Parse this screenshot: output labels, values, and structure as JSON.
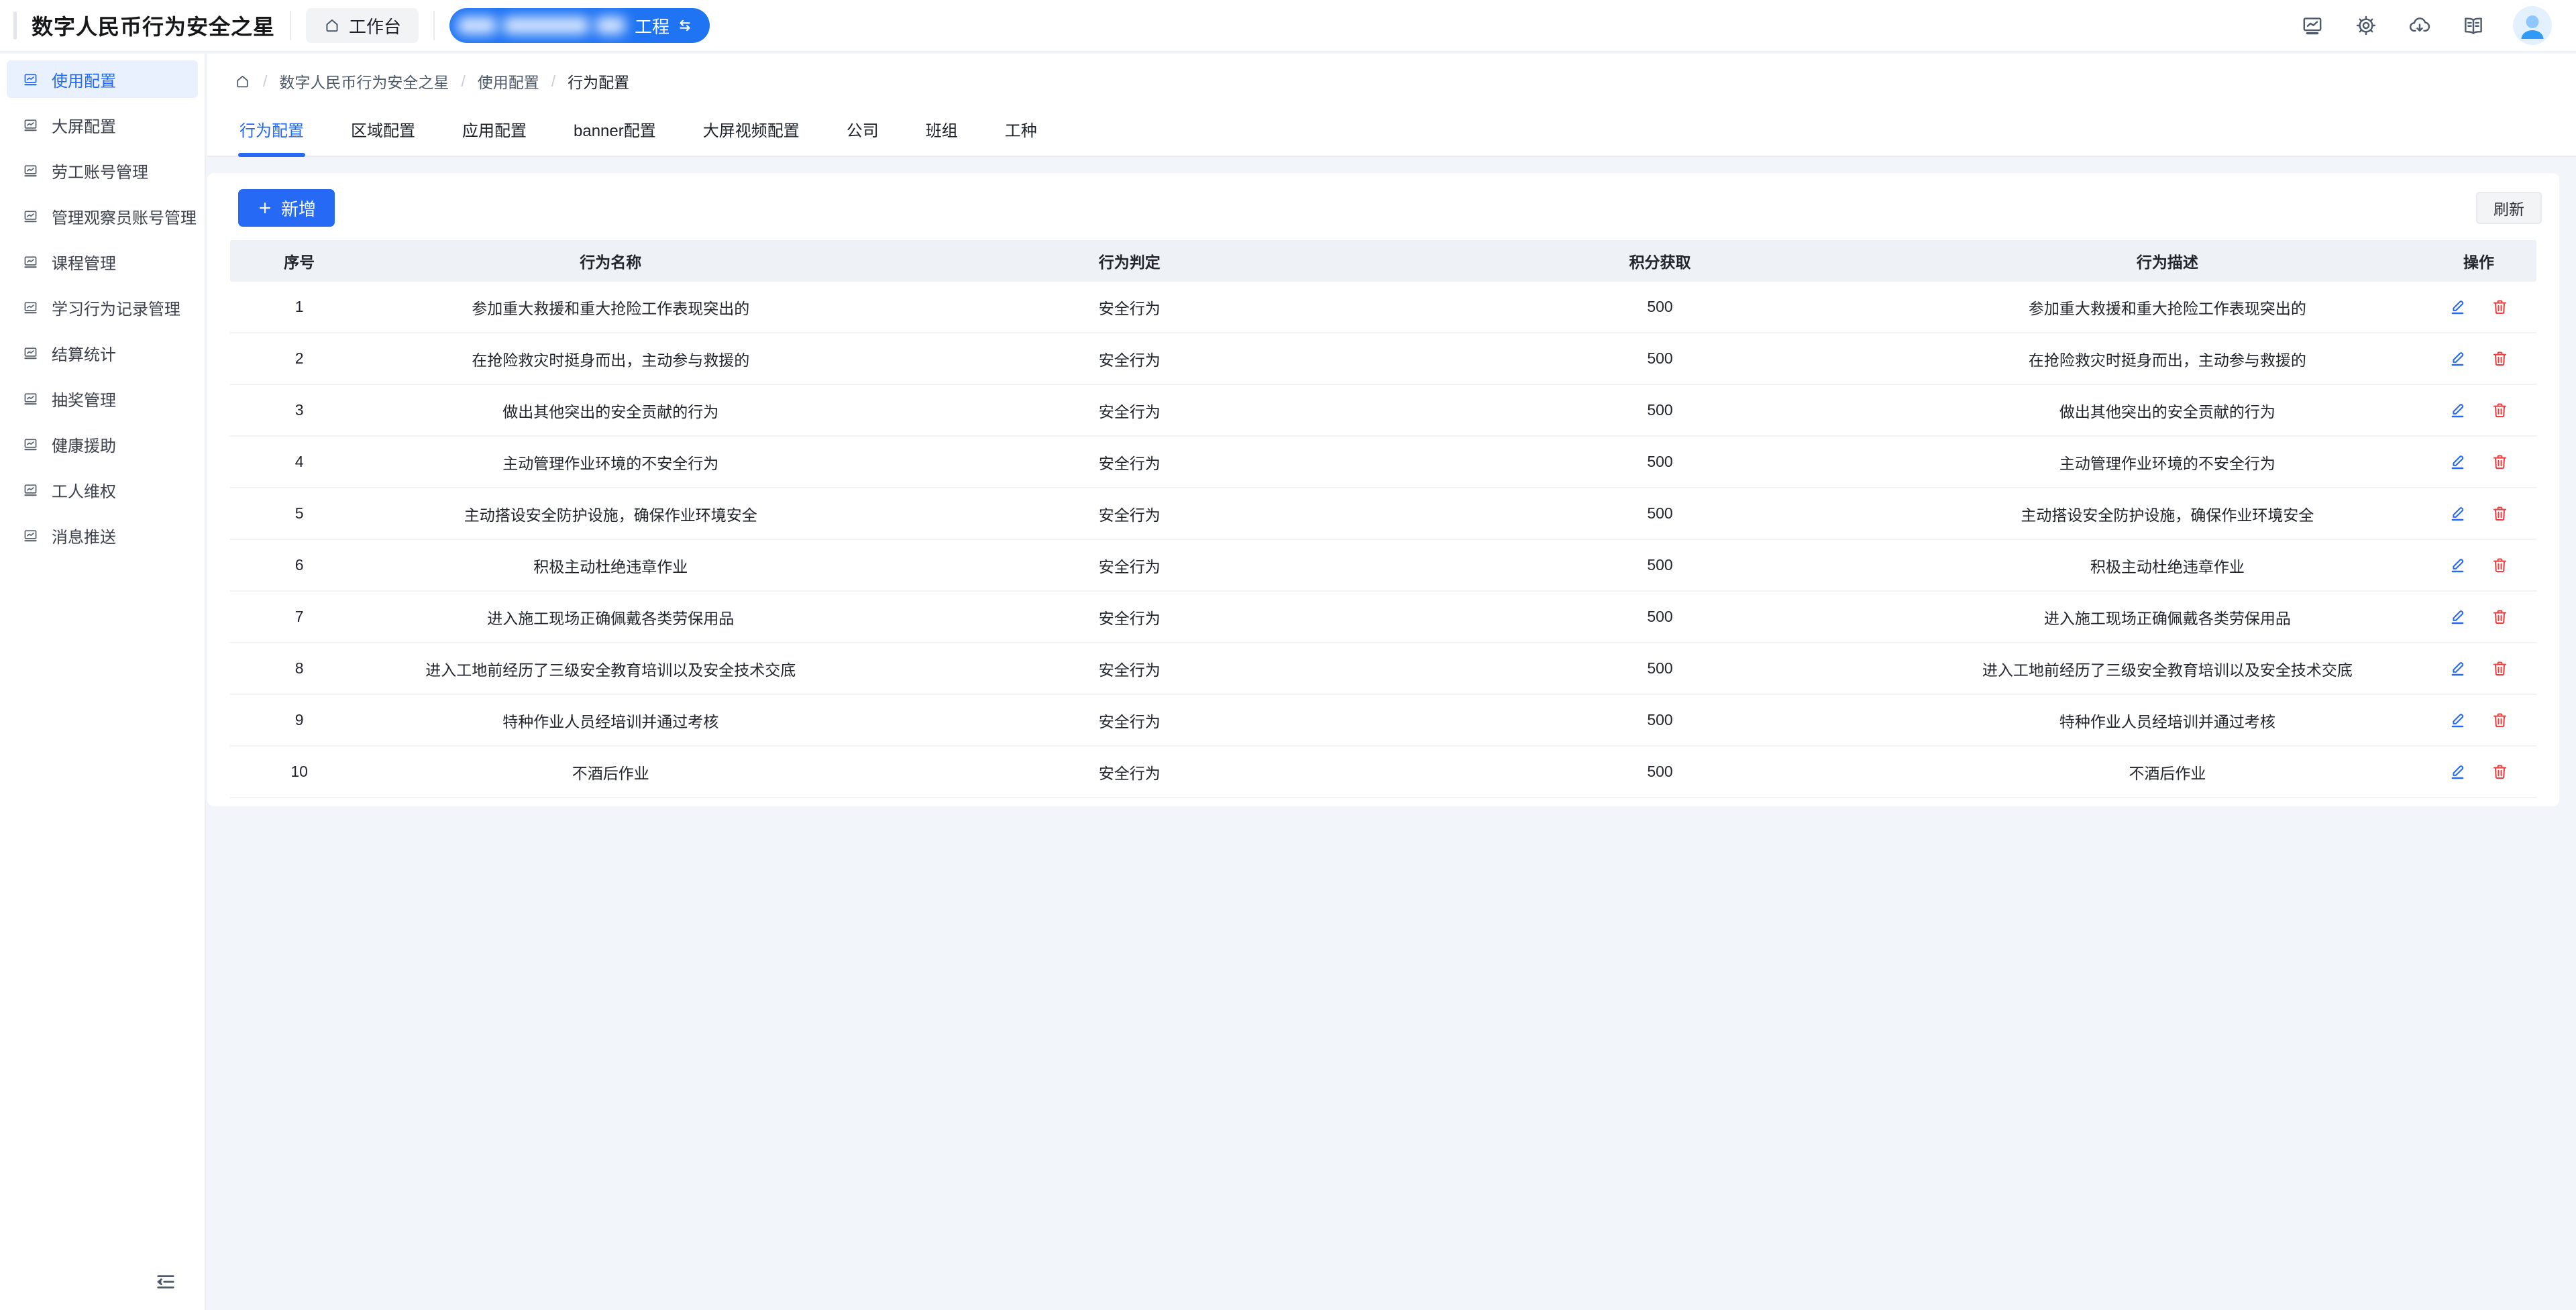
{
  "app": {
    "title": "数字人民币行为安全之星"
  },
  "header": {
    "workbench_label": "工作台",
    "project_switcher": {
      "redacted": true,
      "visible_suffix": "工程",
      "icon": "swap-arrows-icon"
    },
    "action_icons": [
      "monitor-chart-icon",
      "gear-icon",
      "cloud-download-icon",
      "book-icon"
    ],
    "avatar_icon": "user-avatar"
  },
  "sidebar": {
    "collapse_icon": "menu-fold-icon",
    "items": [
      {
        "label": "使用配置",
        "active": true
      },
      {
        "label": "大屏配置",
        "active": false
      },
      {
        "label": "劳工账号管理",
        "active": false
      },
      {
        "label": "管理观察员账号管理",
        "active": false
      },
      {
        "label": "课程管理",
        "active": false
      },
      {
        "label": "学习行为记录管理",
        "active": false
      },
      {
        "label": "结算统计",
        "active": false
      },
      {
        "label": "抽奖管理",
        "active": false
      },
      {
        "label": "健康援助",
        "active": false
      },
      {
        "label": "工人维权",
        "active": false
      },
      {
        "label": "消息推送",
        "active": false
      }
    ]
  },
  "breadcrumb": {
    "home_icon": "home-icon",
    "separator": "/",
    "items": [
      "数字人民币行为安全之星",
      "使用配置",
      "行为配置"
    ]
  },
  "tabs": {
    "items": [
      {
        "label": "行为配置",
        "active": true
      },
      {
        "label": "区域配置",
        "active": false
      },
      {
        "label": "应用配置",
        "active": false
      },
      {
        "label": "banner配置",
        "active": false
      },
      {
        "label": "大屏视频配置",
        "active": false
      },
      {
        "label": "公司",
        "active": false
      },
      {
        "label": "班组",
        "active": false
      },
      {
        "label": "工种",
        "active": false
      }
    ]
  },
  "toolbar": {
    "add_label": "新增",
    "add_icon": "plus-icon",
    "refresh_label": "刷新"
  },
  "table": {
    "columns": [
      "序号",
      "行为名称",
      "行为判定",
      "积分获取",
      "行为描述",
      "操作"
    ],
    "action_icons": [
      "edit-icon",
      "delete-icon"
    ],
    "rows": [
      {
        "index": 1,
        "name": "参加重大救援和重大抢险工作表现突出的",
        "judgment": "安全行为",
        "points": 500,
        "description": "参加重大救援和重大抢险工作表现突出的"
      },
      {
        "index": 2,
        "name": "在抢险救灾时挺身而出，主动参与救援的",
        "judgment": "安全行为",
        "points": 500,
        "description": "在抢险救灾时挺身而出，主动参与救援的"
      },
      {
        "index": 3,
        "name": "做出其他突出的安全贡献的行为",
        "judgment": "安全行为",
        "points": 500,
        "description": "做出其他突出的安全贡献的行为"
      },
      {
        "index": 4,
        "name": "主动管理作业环境的不安全行为",
        "judgment": "安全行为",
        "points": 500,
        "description": "主动管理作业环境的不安全行为"
      },
      {
        "index": 5,
        "name": "主动搭设安全防护设施，确保作业环境安全",
        "judgment": "安全行为",
        "points": 500,
        "description": "主动搭设安全防护设施，确保作业环境安全"
      },
      {
        "index": 6,
        "name": "积极主动杜绝违章作业",
        "judgment": "安全行为",
        "points": 500,
        "description": "积极主动杜绝违章作业"
      },
      {
        "index": 7,
        "name": "进入施工现场正确佩戴各类劳保用品",
        "judgment": "安全行为",
        "points": 500,
        "description": "进入施工现场正确佩戴各类劳保用品"
      },
      {
        "index": 8,
        "name": "进入工地前经历了三级安全教育培训以及安全技术交底",
        "judgment": "安全行为",
        "points": 500,
        "description": "进入工地前经历了三级安全教育培训以及安全技术交底"
      },
      {
        "index": 9,
        "name": "特种作业人员经培训并通过考核",
        "judgment": "安全行为",
        "points": 500,
        "description": "特种作业人员经培训并通过考核"
      },
      {
        "index": 10,
        "name": "不酒后作业",
        "judgment": "安全行为",
        "points": 500,
        "description": "不酒后作业"
      }
    ]
  },
  "colors": {
    "primary": "#2569f5",
    "danger": "#f03e3e",
    "content_bg": "#f2f5f9",
    "table_header_bg": "#eef1f6",
    "sidebar_active_bg": "#e9f1ff"
  }
}
